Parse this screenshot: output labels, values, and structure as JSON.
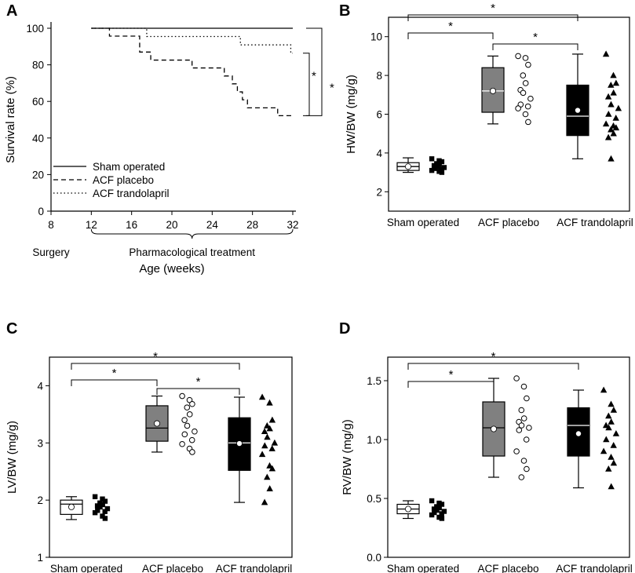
{
  "chart_data": [
    {
      "panel": "A",
      "type": "line",
      "ylabel": "Survival rate (%)",
      "xlabel": "Age (weeks)",
      "ylim": [
        0,
        100
      ],
      "xlim": [
        8,
        32
      ],
      "xticks": [
        8,
        12,
        16,
        20,
        24,
        28,
        32
      ],
      "yticks": [
        0,
        20,
        40,
        60,
        80,
        100
      ],
      "annotations": {
        "surgery": "Surgery",
        "treatment": "Pharmacological treatment",
        "sig_1": "*",
        "sig_2": "*"
      },
      "series": [
        {
          "name": "Sham operated",
          "style": "solid",
          "x": [
            12,
            32
          ],
          "y": [
            100,
            100
          ]
        },
        {
          "name": "ACF placebo",
          "style": "dashed",
          "x": [
            12,
            13.8,
            13.8,
            16.8,
            16.8,
            17.9,
            17.9,
            22,
            22,
            25.2,
            25.2,
            26,
            26,
            26.5,
            26.5,
            27,
            27,
            27.5,
            27.5,
            30.5,
            30.5,
            32
          ],
          "y": [
            100,
            100,
            95.7,
            95.7,
            87,
            87,
            82.6,
            82.6,
            78.3,
            78.3,
            73.9,
            73.9,
            69.6,
            69.6,
            65.2,
            65.2,
            60.9,
            60.9,
            56.5,
            56.5,
            52.2,
            52.2
          ]
        },
        {
          "name": "ACF trandolapril",
          "style": "dotted",
          "x": [
            12,
            17.5,
            17.5,
            26.8,
            26.8,
            31.8,
            31.8,
            32
          ],
          "y": [
            100,
            100,
            95.5,
            95.5,
            90.9,
            90.9,
            86.4,
            86.4
          ]
        }
      ]
    },
    {
      "panel": "B",
      "type": "box",
      "ylabel": "HW/BW (mg/g)",
      "ylim": [
        1,
        11
      ],
      "yticks": [
        2,
        4,
        6,
        8,
        10
      ],
      "categories": [
        "Sham operated",
        "ACF placebo",
        "ACF trandolapril"
      ],
      "significance": [
        {
          "from": 0,
          "to": 1,
          "label": "*"
        },
        {
          "from": 1,
          "to": 2,
          "label": "*"
        },
        {
          "from": 0,
          "to": 2,
          "label": "*"
        }
      ],
      "groups": [
        {
          "fill": "#ffffff",
          "median_color": "#000000",
          "mean_fill": "#ffffff",
          "marker": "square",
          "whisker_low": 3.0,
          "q1": 3.1,
          "median": 3.3,
          "q3": 3.5,
          "whisker_high": 3.75,
          "mean": 3.3,
          "points": [
            3.7,
            3.6,
            3.55,
            3.45,
            3.4,
            3.35,
            3.3,
            3.25,
            3.2,
            3.15,
            3.1,
            3.05,
            3.0
          ]
        },
        {
          "fill": "#808080",
          "median_color": "#ffffff",
          "mean_fill": "#ffffff",
          "marker": "open-circle",
          "whisker_low": 5.5,
          "q1": 6.1,
          "median": 7.2,
          "q3": 8.4,
          "whisker_high": 9.0,
          "mean": 7.2,
          "points": [
            9.0,
            8.9,
            8.55,
            8.0,
            7.6,
            7.25,
            7.1,
            6.8,
            6.5,
            6.4,
            6.3,
            6.0,
            5.6
          ]
        },
        {
          "fill": "#000000",
          "median_color": "#ffffff",
          "mean_fill": "#ffffff",
          "marker": "triangle",
          "whisker_low": 3.7,
          "q1": 4.9,
          "median": 5.9,
          "q3": 7.5,
          "whisker_high": 9.1,
          "mean": 6.2,
          "points": [
            9.1,
            8.0,
            7.6,
            7.5,
            7.1,
            6.9,
            6.5,
            6.3,
            6.0,
            5.8,
            5.5,
            5.4,
            5.3,
            5.2,
            5.0,
            4.8,
            3.7
          ]
        }
      ]
    },
    {
      "panel": "C",
      "type": "box",
      "ylabel": "LV/BW (mg/g)",
      "ylim": [
        1,
        4.5
      ],
      "yticks": [
        1,
        2,
        3,
        4
      ],
      "categories": [
        "Sham operated",
        "ACF placebo",
        "ACF trandolapril"
      ],
      "significance": [
        {
          "from": 0,
          "to": 1,
          "label": "*"
        },
        {
          "from": 1,
          "to": 2,
          "label": "*"
        },
        {
          "from": 0,
          "to": 2,
          "label": "*"
        }
      ],
      "groups": [
        {
          "fill": "#ffffff",
          "median_color": "#000000",
          "mean_fill": "#ffffff",
          "marker": "square",
          "whisker_low": 1.66,
          "q1": 1.75,
          "median": 1.93,
          "q3": 2.0,
          "whisker_high": 2.06,
          "mean": 1.88,
          "points": [
            2.06,
            2.02,
            1.98,
            1.95,
            1.92,
            1.9,
            1.88,
            1.85,
            1.82,
            1.8,
            1.78,
            1.72,
            1.68
          ]
        },
        {
          "fill": "#808080",
          "median_color": "#000000",
          "mean_fill": "#ffffff",
          "marker": "open-circle",
          "whisker_low": 2.84,
          "q1": 3.03,
          "median": 3.26,
          "q3": 3.65,
          "whisker_high": 3.82,
          "mean": 3.34,
          "points": [
            3.82,
            3.75,
            3.68,
            3.62,
            3.5,
            3.4,
            3.3,
            3.2,
            3.15,
            3.05,
            2.98,
            2.9,
            2.84
          ]
        },
        {
          "fill": "#000000",
          "median_color": "#ffffff",
          "mean_fill": "#ffffff",
          "marker": "triangle",
          "whisker_low": 1.96,
          "q1": 2.52,
          "median": 3.0,
          "q3": 3.44,
          "whisker_high": 3.8,
          "mean": 2.99,
          "points": [
            3.8,
            3.7,
            3.4,
            3.3,
            3.25,
            3.2,
            3.1,
            3.0,
            2.95,
            2.9,
            2.8,
            2.6,
            2.55,
            2.4,
            2.2,
            1.96
          ]
        }
      ]
    },
    {
      "panel": "D",
      "type": "box",
      "ylabel": "RV/BW (mg/g)",
      "ylim": [
        0,
        1.7
      ],
      "yticks": [
        0.0,
        0.5,
        1.0,
        1.5
      ],
      "ytick_labels": [
        "0.0",
        "0.5",
        "1.0",
        "1.5"
      ],
      "categories": [
        "Sham operated",
        "ACF placebo",
        "ACF trandolapril"
      ],
      "significance": [
        {
          "from": 0,
          "to": 1,
          "label": "*"
        },
        {
          "from": 0,
          "to": 2,
          "label": "*"
        }
      ],
      "groups": [
        {
          "fill": "#ffffff",
          "median_color": "#000000",
          "mean_fill": "#ffffff",
          "marker": "square",
          "whisker_low": 0.33,
          "q1": 0.37,
          "median": 0.41,
          "q3": 0.45,
          "whisker_high": 0.48,
          "mean": 0.41,
          "points": [
            0.48,
            0.46,
            0.45,
            0.43,
            0.42,
            0.41,
            0.4,
            0.39,
            0.38,
            0.37,
            0.36,
            0.34,
            0.33
          ]
        },
        {
          "fill": "#808080",
          "median_color": "#000000",
          "mean_fill": "#ffffff",
          "marker": "open-circle",
          "whisker_low": 0.68,
          "q1": 0.86,
          "median": 1.1,
          "q3": 1.32,
          "whisker_high": 1.52,
          "mean": 1.09,
          "points": [
            1.52,
            1.45,
            1.35,
            1.25,
            1.18,
            1.15,
            1.12,
            1.1,
            1.08,
            1.0,
            0.9,
            0.82,
            0.75,
            0.68
          ]
        },
        {
          "fill": "#000000",
          "median_color": "#ffffff",
          "mean_fill": "#ffffff",
          "marker": "triangle",
          "whisker_low": 0.59,
          "q1": 0.86,
          "median": 1.12,
          "q3": 1.27,
          "whisker_high": 1.42,
          "mean": 1.05,
          "points": [
            1.42,
            1.3,
            1.25,
            1.2,
            1.15,
            1.12,
            1.1,
            1.05,
            1.0,
            0.95,
            0.9,
            0.85,
            0.8,
            0.75,
            0.6
          ]
        }
      ]
    }
  ]
}
